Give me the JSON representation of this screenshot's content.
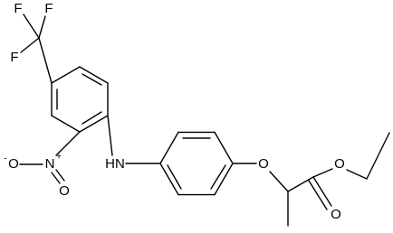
{
  "atoms": [
    {
      "label": "F"
    },
    {
      "label": "F"
    },
    {
      "label": "F"
    },
    {
      "label": "N",
      "charge": "+"
    },
    {
      "label": "O",
      "charge": "-"
    },
    {
      "label": "O"
    },
    {
      "label": "HN"
    },
    {
      "label": "O"
    },
    {
      "label": "O"
    },
    {
      "label": "O"
    }
  ]
}
